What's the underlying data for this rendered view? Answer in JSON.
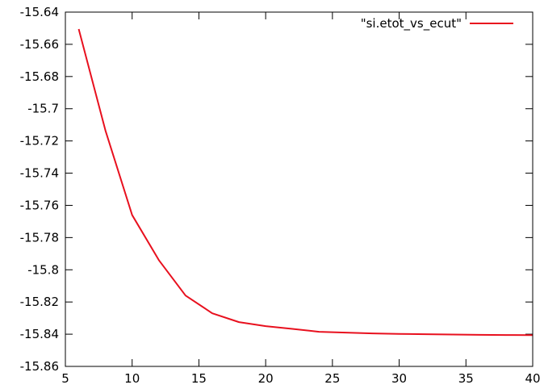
{
  "chart_data": {
    "type": "line",
    "title": "",
    "xlabel": "",
    "ylabel": "",
    "xlim": [
      5,
      40
    ],
    "ylim": [
      -15.86,
      -15.64
    ],
    "x_ticks": [
      5,
      10,
      15,
      20,
      25,
      30,
      35,
      40
    ],
    "y_ticks": [
      -15.64,
      -15.66,
      -15.68,
      -15.7,
      -15.72,
      -15.74,
      -15.76,
      -15.78,
      -15.8,
      -15.82,
      -15.84,
      -15.86
    ],
    "x_tick_labels": [
      "5",
      "10",
      "15",
      "20",
      "25",
      "30",
      "35",
      "40"
    ],
    "y_tick_labels": [
      "-15.64",
      "-15.66",
      "-15.68",
      "-15.7",
      "-15.72",
      "-15.74",
      "-15.76",
      "-15.78",
      "-15.8",
      "-15.82",
      "-15.84",
      "-15.86"
    ],
    "grid": false,
    "legend_position": "top-right",
    "series": [
      {
        "name": "\"si.etot_vs_ecut\"",
        "color": "#e8101e",
        "x": [
          6,
          8,
          10,
          12,
          14,
          16,
          18,
          20,
          22,
          24,
          26,
          28,
          30,
          32,
          34,
          36,
          38,
          40
        ],
        "y": [
          -15.6505,
          -15.7135,
          -15.766,
          -15.794,
          -15.816,
          -15.827,
          -15.8325,
          -15.835,
          -15.8367,
          -15.8385,
          -15.839,
          -15.8395,
          -15.8398,
          -15.84,
          -15.8402,
          -15.8404,
          -15.8405,
          -15.8406
        ]
      }
    ]
  }
}
